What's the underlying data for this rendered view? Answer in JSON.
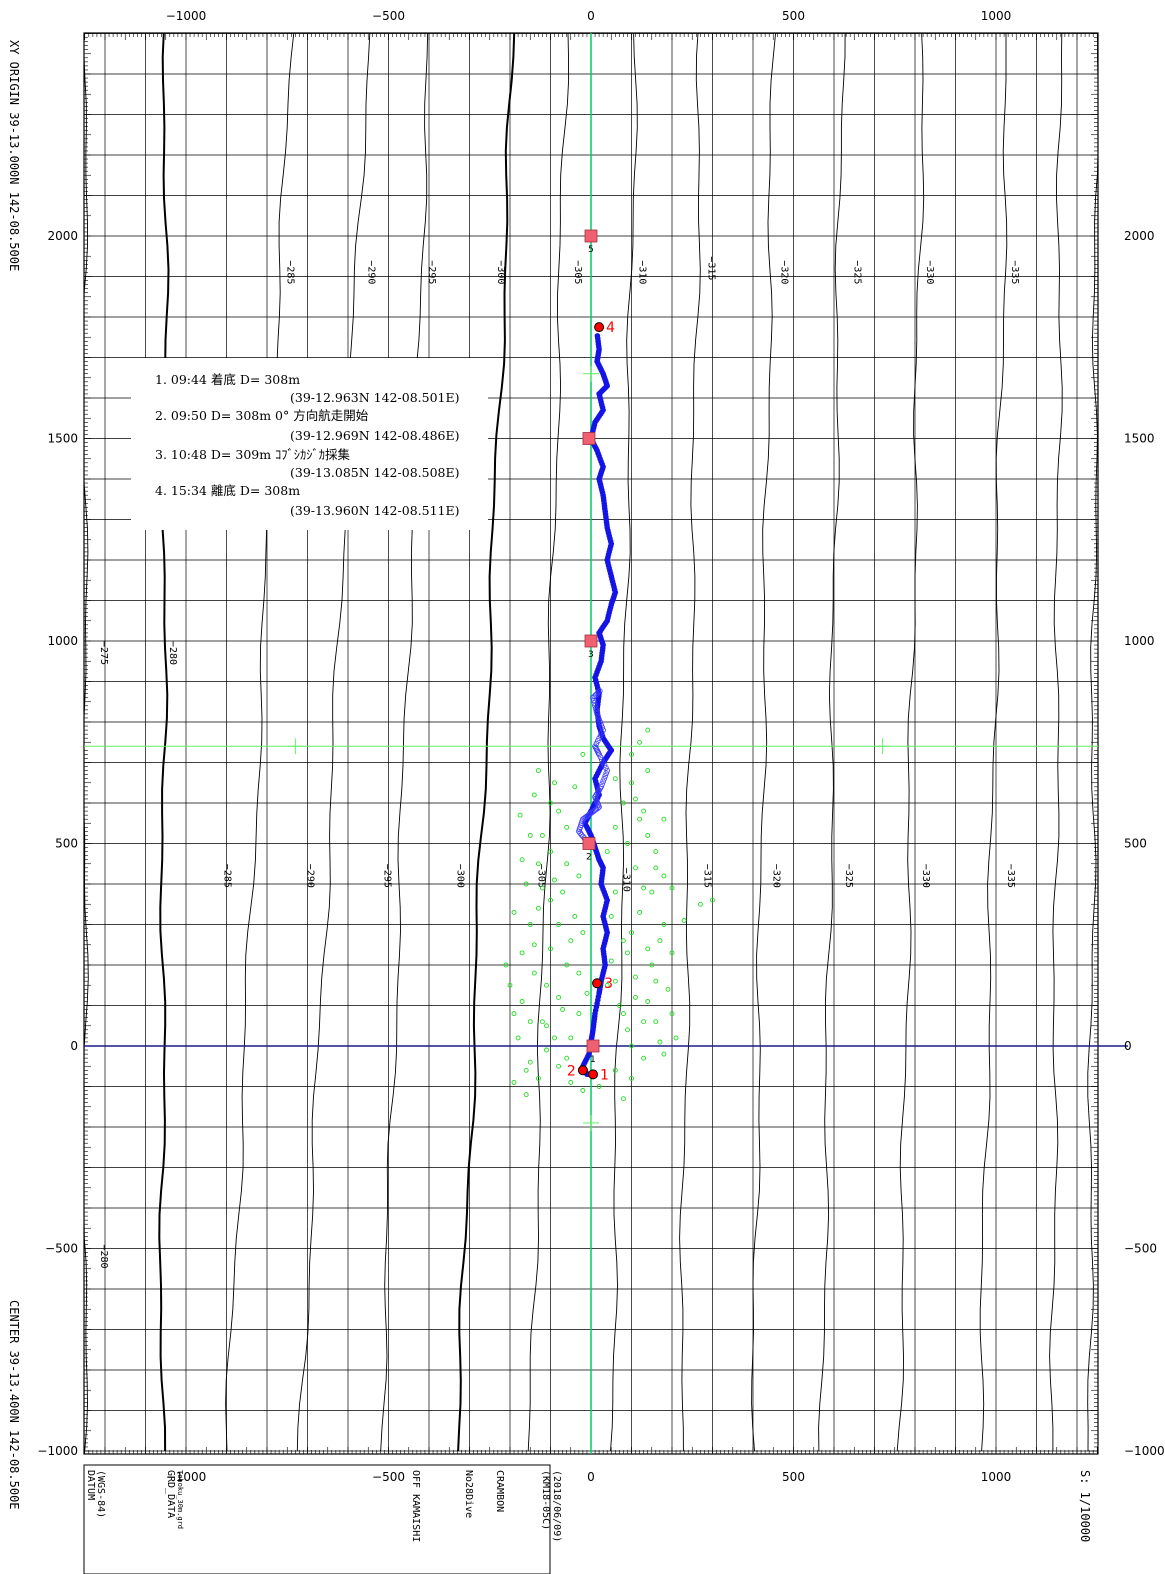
{
  "chart_data": {
    "type": "scatter",
    "xlim": [
      -1250,
      1250
    ],
    "ylim": [
      -1000,
      2000
    ],
    "x_ticks": [
      -1000,
      -500,
      0,
      500,
      1000
    ],
    "x_tick_labels": [
      "−1000",
      "−500",
      "0",
      "500",
      "1000"
    ],
    "y_ticks": [
      2000,
      1500,
      1000,
      500,
      0,
      -500,
      -1000
    ],
    "y_tick_labels": [
      "2000",
      "1500",
      "1000",
      "500",
      "0",
      "−500",
      "−1000"
    ],
    "right_y_tick_labels": [
      "2000",
      "1500",
      "1000",
      "500",
      "0",
      "−500",
      "−1000"
    ],
    "grid_spacing": 100,
    "grid": true,
    "colors": {
      "track": "#1414e6",
      "track_hollow": "#3a3aff",
      "scatter": "#22dd22",
      "axis_line": "#00cc66",
      "cross_line": "#66ee66",
      "zero_line": "#1a1a8c",
      "grid": "#000000",
      "contour": "#000000",
      "event": "#ff0000",
      "waypoint": "#f06070"
    },
    "contours": [
      {
        "label": "−275",
        "x_bottom": -1250,
        "x_top": -1250,
        "lx": -1210,
        "ly": 1000
      },
      {
        "label": "−280",
        "x_bottom": -1060,
        "x_top": -1050,
        "lx": -1040,
        "ly": 1000
      },
      {
        "label": "−285",
        "x_bottom": -900,
        "x_top": -740,
        "lx": -750,
        "ly": 1940
      },
      {
        "label": "−290",
        "x_bottom": -720,
        "x_top": -550,
        "lx": -550,
        "ly": 1940
      },
      {
        "label": "−295",
        "x_bottom": -520,
        "x_top": -400,
        "lx": -400,
        "ly": 1940
      },
      {
        "label": "−300",
        "x_bottom": -330,
        "x_top": -190,
        "lx": -230,
        "ly": 1940
      },
      {
        "label": "−305",
        "x_bottom": -150,
        "x_top": -60,
        "lx": -40,
        "ly": 1940
      },
      {
        "label": "−310",
        "x_bottom": 50,
        "x_top": 110,
        "lx": 120,
        "ly": 1940
      },
      {
        "label": "−315",
        "x_bottom": 220,
        "x_top": 270,
        "lx": 290,
        "ly": 1950
      },
      {
        "label": "−320",
        "x_bottom": 400,
        "x_top": 450,
        "lx": 470,
        "ly": 1940
      },
      {
        "label": "−325",
        "x_bottom": 570,
        "x_top": 620,
        "lx": 650,
        "ly": 1940
      },
      {
        "label": "−330",
        "x_bottom": 760,
        "x_top": 820,
        "lx": 830,
        "ly": 1940
      },
      {
        "label": "−335",
        "x_bottom": 960,
        "x_top": 1030,
        "lx": 1040,
        "ly": 1940
      },
      {
        "label": "",
        "x_bottom": 1140,
        "x_top": 1160,
        "lx": 0,
        "ly": 0
      },
      {
        "label": "",
        "x_bottom": 1230,
        "x_top": 1250,
        "lx": 0,
        "ly": 0
      }
    ],
    "contour_mid_labels": [
      {
        "label": "−285",
        "x": -905,
        "y": 450
      },
      {
        "label": "−290",
        "x": -700,
        "y": 450
      },
      {
        "label": "−295",
        "x": -510,
        "y": 450
      },
      {
        "label": "−300",
        "x": -330,
        "y": 450
      },
      {
        "label": "−305",
        "x": -130,
        "y": 450
      },
      {
        "label": "−310",
        "x": 80,
        "y": 440
      },
      {
        "label": "−315",
        "x": 280,
        "y": 450
      },
      {
        "label": "−320",
        "x": 450,
        "y": 450
      },
      {
        "label": "−325",
        "x": 630,
        "y": 450
      },
      {
        "label": "−330",
        "x": 820,
        "y": 450
      },
      {
        "label": "−335",
        "x": 1030,
        "y": 450
      },
      {
        "label": "−280",
        "x": -1210,
        "y": -490
      }
    ],
    "track": [
      [
        -10,
        -70
      ],
      [
        -20,
        -50
      ],
      [
        -5,
        -20
      ],
      [
        0,
        10
      ],
      [
        5,
        40
      ],
      [
        10,
        80
      ],
      [
        20,
        130
      ],
      [
        25,
        160
      ],
      [
        35,
        200
      ],
      [
        30,
        240
      ],
      [
        40,
        280
      ],
      [
        30,
        320
      ],
      [
        40,
        360
      ],
      [
        25,
        400
      ],
      [
        30,
        440
      ],
      [
        20,
        460
      ],
      [
        10,
        490
      ],
      [
        0,
        520
      ],
      [
        -15,
        550
      ],
      [
        0,
        580
      ],
      [
        20,
        620
      ],
      [
        10,
        660
      ],
      [
        30,
        700
      ],
      [
        50,
        730
      ],
      [
        30,
        760
      ],
      [
        20,
        790
      ],
      [
        15,
        830
      ],
      [
        20,
        870
      ],
      [
        10,
        910
      ],
      [
        25,
        950
      ],
      [
        30,
        990
      ],
      [
        20,
        1020
      ],
      [
        40,
        1050
      ],
      [
        50,
        1090
      ],
      [
        60,
        1120
      ],
      [
        50,
        1160
      ],
      [
        40,
        1200
      ],
      [
        50,
        1240
      ],
      [
        40,
        1280
      ],
      [
        35,
        1320
      ],
      [
        30,
        1360
      ],
      [
        20,
        1400
      ],
      [
        30,
        1430
      ],
      [
        15,
        1470
      ],
      [
        0,
        1500
      ],
      [
        10,
        1540
      ],
      [
        30,
        1570
      ],
      [
        20,
        1610
      ],
      [
        40,
        1630
      ],
      [
        30,
        1660
      ],
      [
        15,
        1690
      ],
      [
        20,
        1720
      ],
      [
        15,
        1760
      ]
    ],
    "hollow_track": [
      [
        -10,
        505
      ],
      [
        -30,
        530
      ],
      [
        -20,
        560
      ],
      [
        0,
        575
      ],
      [
        20,
        590
      ],
      [
        10,
        615
      ],
      [
        25,
        640
      ],
      [
        40,
        680
      ],
      [
        20,
        720
      ],
      [
        10,
        740
      ],
      [
        30,
        780
      ],
      [
        15,
        820
      ],
      [
        5,
        860
      ],
      [
        25,
        880
      ]
    ],
    "scatter_points": [
      [
        -110,
        50
      ],
      [
        -160,
        -120
      ],
      [
        -80,
        120
      ],
      [
        -60,
        200
      ],
      [
        -150,
        300
      ],
      [
        -130,
        340
      ],
      [
        -90,
        410
      ],
      [
        -70,
        380
      ],
      [
        -40,
        320
      ],
      [
        -20,
        280
      ],
      [
        -50,
        260
      ],
      [
        -100,
        240
      ],
      [
        -140,
        180
      ],
      [
        -170,
        110
      ],
      [
        -120,
        60
      ],
      [
        -90,
        20
      ],
      [
        -60,
        -30
      ],
      [
        -130,
        -80
      ],
      [
        -180,
        20
      ],
      [
        -200,
        150
      ],
      [
        -170,
        230
      ],
      [
        -190,
        330
      ],
      [
        -160,
        400
      ],
      [
        -130,
        450
      ],
      [
        -100,
        480
      ],
      [
        -60,
        540
      ],
      [
        -150,
        520
      ],
      [
        -175,
        570
      ],
      [
        -100,
        600
      ],
      [
        -40,
        640
      ],
      [
        -20,
        720
      ],
      [
        80,
        600
      ],
      [
        100,
        650
      ],
      [
        120,
        560
      ],
      [
        140,
        520
      ],
      [
        160,
        480
      ],
      [
        180,
        420
      ],
      [
        150,
        380
      ],
      [
        120,
        330
      ],
      [
        100,
        280
      ],
      [
        90,
        230
      ],
      [
        110,
        170
      ],
      [
        140,
        110
      ],
      [
        160,
        60
      ],
      [
        170,
        10
      ],
      [
        130,
        -30
      ],
      [
        100,
        -80
      ],
      [
        80,
        -130
      ],
      [
        90,
        40
      ],
      [
        70,
        100
      ],
      [
        60,
        160
      ],
      [
        200,
        230
      ],
      [
        230,
        310
      ],
      [
        270,
        350
      ],
      [
        300,
        360
      ],
      [
        120,
        750
      ],
      [
        140,
        680
      ],
      [
        60,
        540
      ],
      [
        40,
        480
      ],
      [
        190,
        140
      ],
      [
        200,
        80
      ],
      [
        210,
        20
      ],
      [
        180,
        -20
      ],
      [
        150,
        200
      ],
      [
        170,
        260
      ],
      [
        110,
        440
      ],
      [
        130,
        390
      ],
      [
        90,
        500
      ],
      [
        -30,
        180
      ],
      [
        -70,
        90
      ],
      [
        -110,
        150
      ],
      [
        -150,
        60
      ],
      [
        -190,
        80
      ],
      [
        -210,
        200
      ],
      [
        -140,
        250
      ],
      [
        -80,
        300
      ],
      [
        -120,
        390
      ],
      [
        -60,
        450
      ],
      [
        -30,
        420
      ],
      [
        -100,
        360
      ],
      [
        -170,
        460
      ],
      [
        -120,
        520
      ],
      [
        -80,
        580
      ],
      [
        -140,
        620
      ],
      [
        -130,
        680
      ],
      [
        50,
        320
      ],
      [
        60,
        380
      ],
      [
        80,
        260
      ],
      [
        50,
        210
      ],
      [
        40,
        150
      ],
      [
        -30,
        80
      ],
      [
        -10,
        130
      ],
      [
        -50,
        20
      ],
      [
        -80,
        -50
      ],
      [
        -110,
        -10
      ],
      [
        -150,
        -40
      ],
      [
        -190,
        -90
      ],
      [
        -160,
        -60
      ],
      [
        -50,
        -90
      ],
      [
        -20,
        -110
      ],
      [
        20,
        -100
      ],
      [
        60,
        -60
      ],
      [
        100,
        0
      ],
      [
        130,
        60
      ],
      [
        160,
        160
      ],
      [
        180,
        300
      ],
      [
        140,
        240
      ],
      [
        110,
        120
      ],
      [
        80,
        80
      ],
      [
        200,
        390
      ],
      [
        160,
        440
      ],
      [
        110,
        610
      ],
      [
        130,
        580
      ],
      [
        60,
        660
      ],
      [
        180,
        560
      ],
      [
        100,
        720
      ],
      [
        140,
        780
      ],
      [
        -90,
        650
      ]
    ],
    "waypoints": [
      {
        "label": "1",
        "x": 5,
        "y": 0
      },
      {
        "label": "2",
        "x": -5,
        "y": 500
      },
      {
        "label": "3",
        "x": 0,
        "y": 1000
      },
      {
        "label": "",
        "x": -5,
        "y": 1500
      },
      {
        "label": "5",
        "x": 0,
        "y": 2000
      }
    ],
    "events": [
      {
        "label": "1",
        "x": 5,
        "y": -70
      },
      {
        "label": "2",
        "x": -20,
        "y": -60
      },
      {
        "label": "3",
        "x": 15,
        "y": 155
      },
      {
        "label": "4",
        "x": 20,
        "y": 1775
      }
    ],
    "cross_y": 740,
    "cross_marks": [
      [
        -730,
        740
      ],
      [
        720,
        740
      ]
    ],
    "axis_marks": [
      [
        0,
        1660
      ],
      [
        0,
        -190
      ]
    ]
  },
  "legend": {
    "lines": [
      "1. 09:44 着底 D= 308m",
      "(39-12.963N 142-08.501E)",
      "2. 09:50 D= 308m 0° 方向航走開始",
      "(39-12.969N 142-08.486E)",
      "3. 10:48 D= 309m ｺﾌﾞｼｶｼﾞｶ採集",
      "(39-13.085N 142-08.508E)",
      "4. 15:34 離底 D= 308m",
      "(39-13.960N 142-08.511E)"
    ]
  },
  "side_left": {
    "top": "XY ORIGIN  39-13.000N  142-08.500E",
    "bottom": "CENTER 39-13.400N  142-08.500E"
  },
  "footer": {
    "datum": "DATUM",
    "datum_val": "(WGS-84)",
    "grd": "GRD_DATA",
    "grd_val": "Tohoku_30m.grd",
    "area": "OFF KAMAISHI",
    "dive": "No28Dive",
    "crambon": "CRAMBON",
    "date": "(2018/06/09)",
    "cruise": "(KM18-05C)",
    "scale": "S: 1/10000"
  }
}
